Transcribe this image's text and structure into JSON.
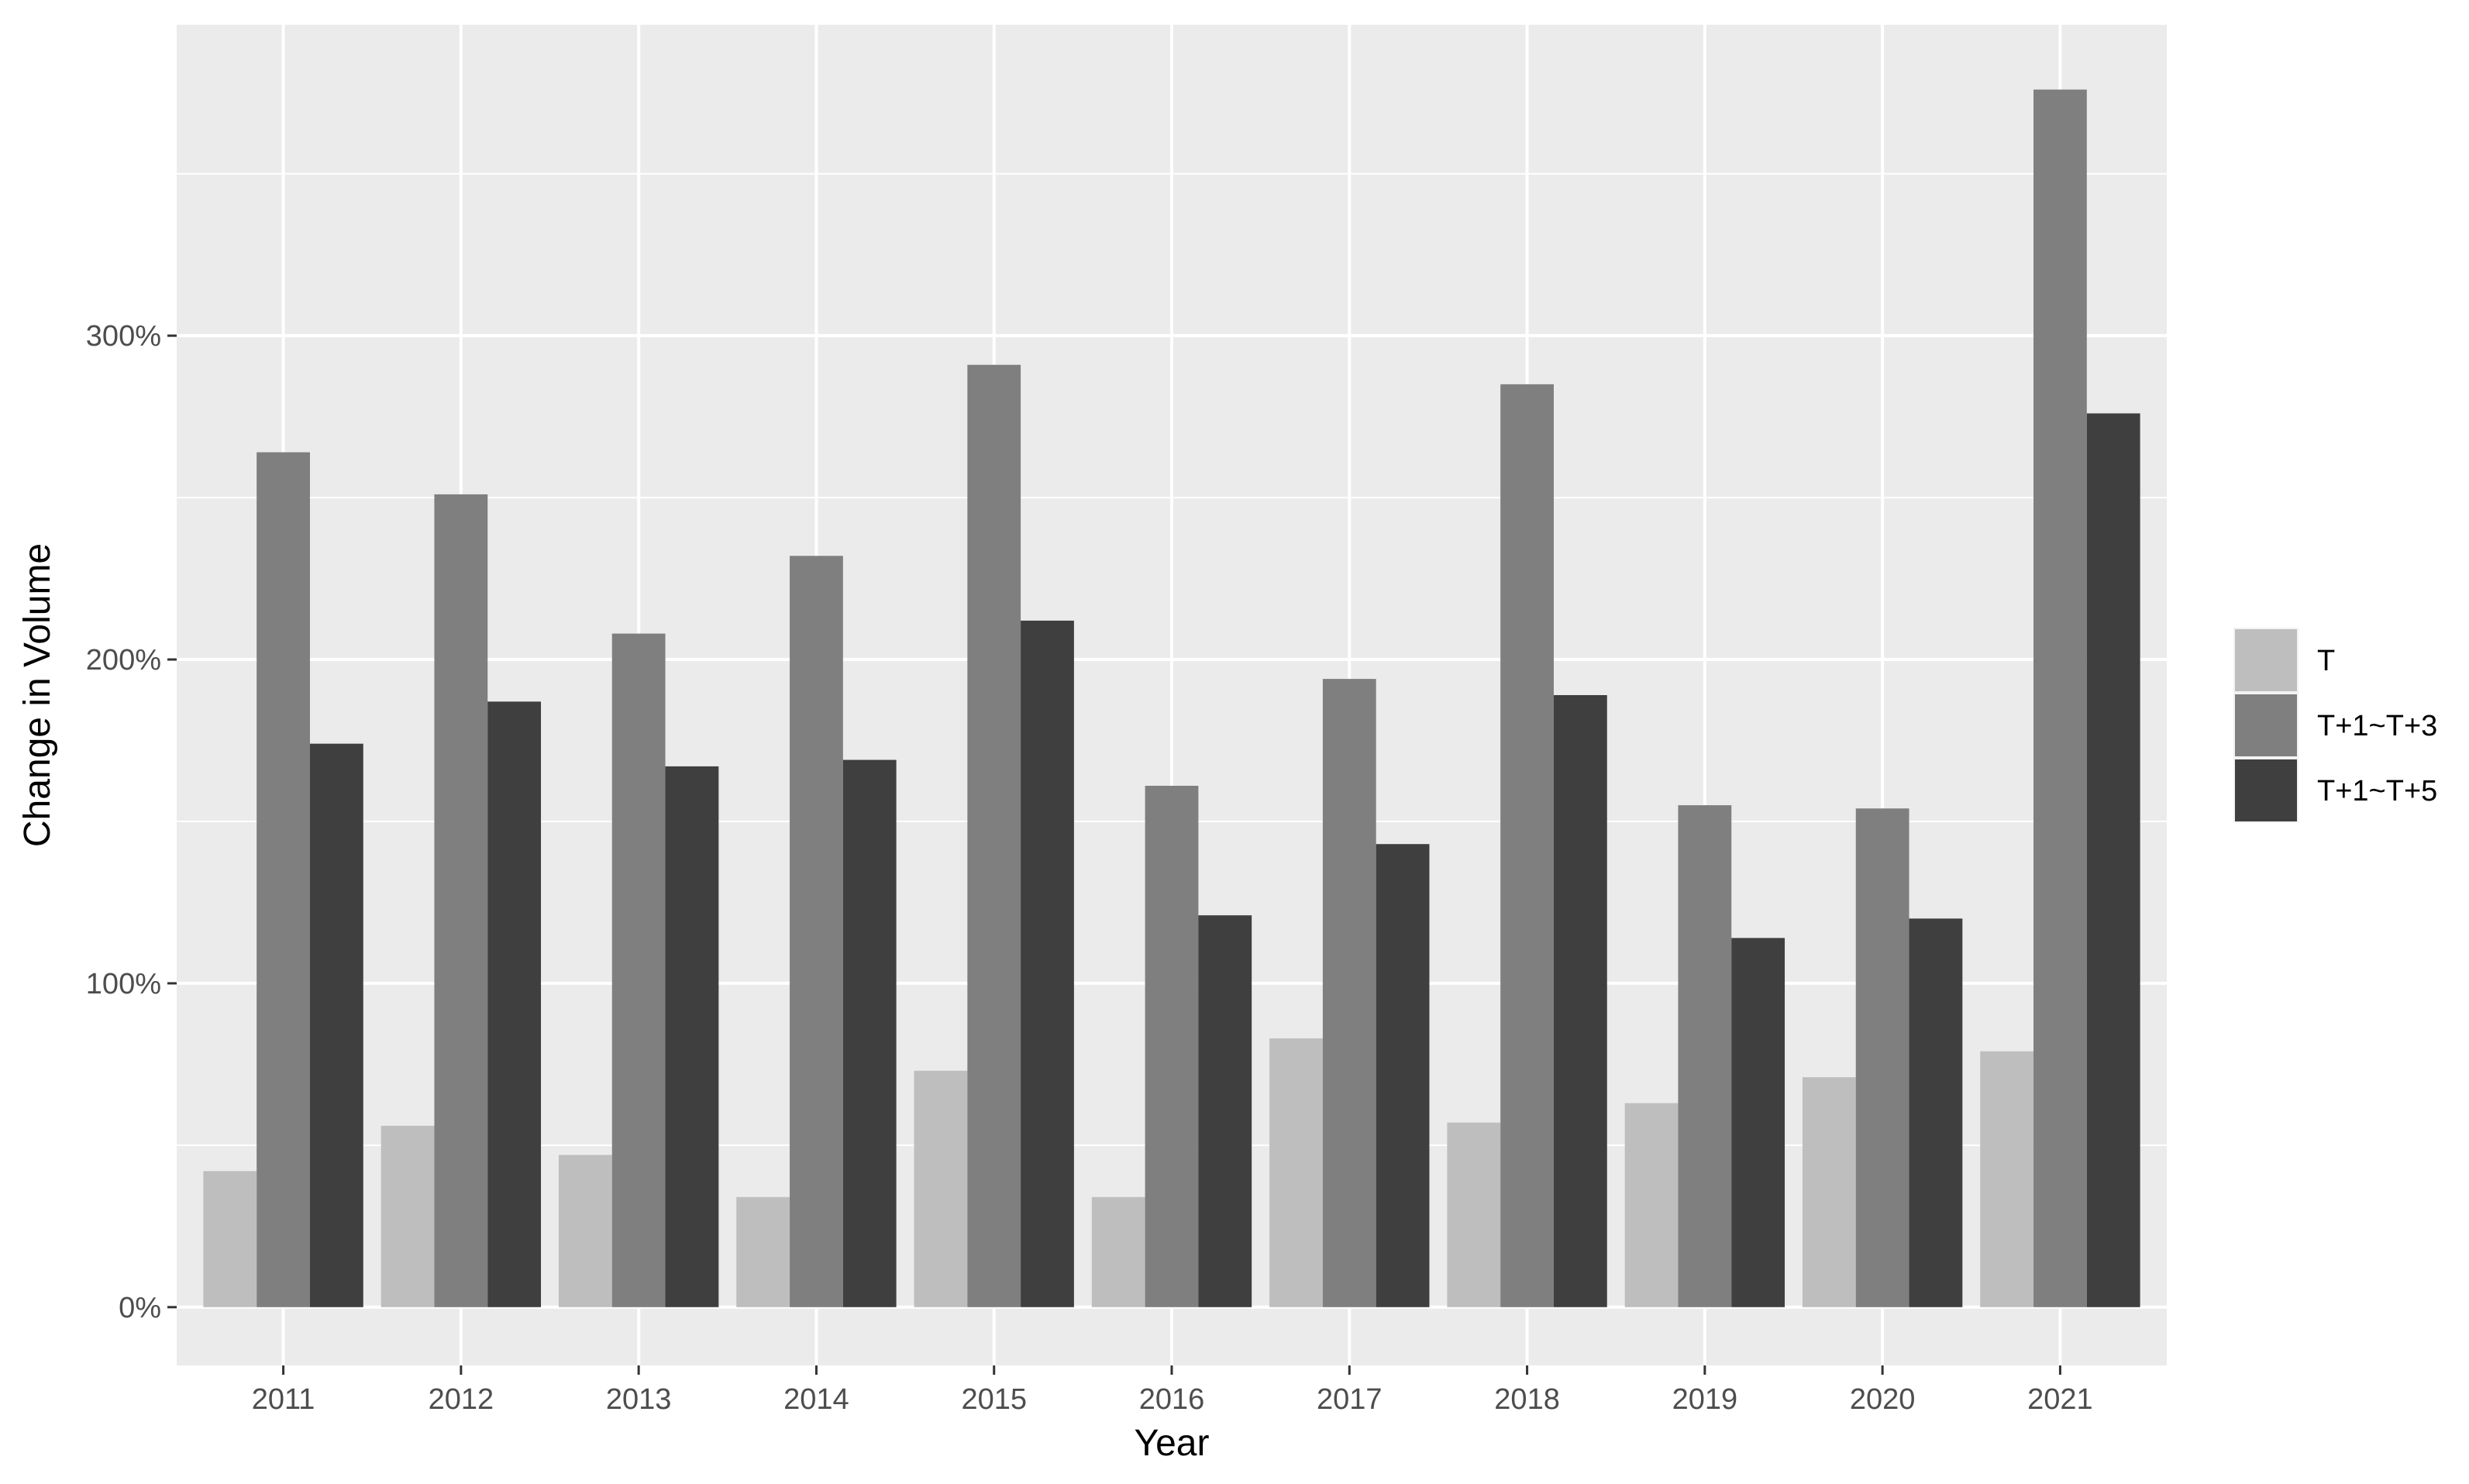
{
  "chart_data": {
    "type": "bar",
    "title": "",
    "xlabel": "Year",
    "ylabel": "Change in Volume",
    "categories": [
      "2011",
      "2012",
      "2013",
      "2014",
      "2015",
      "2016",
      "2017",
      "2018",
      "2019",
      "2020",
      "2021"
    ],
    "series": [
      {
        "name": "T",
        "color": "#bebebe",
        "values": [
          42,
          56,
          47,
          34,
          73,
          34,
          83,
          57,
          63,
          71,
          79
        ]
      },
      {
        "name": "T+1~T+3",
        "color": "#7f7f7f",
        "values": [
          264,
          251,
          208,
          232,
          291,
          161,
          194,
          285,
          155,
          154,
          376
        ]
      },
      {
        "name": "T+1~T+5",
        "color": "#3f3f3f",
        "values": [
          174,
          187,
          167,
          169,
          212,
          121,
          143,
          189,
          114,
          120,
          276
        ]
      }
    ],
    "yticks": [
      0,
      100,
      200,
      300
    ],
    "ytick_labels": [
      "0%",
      "100%",
      "200%",
      "300%"
    ],
    "ylim": [
      -18,
      396
    ],
    "grid": true,
    "legend_position": "right",
    "panel_background": "#ebebeb"
  }
}
